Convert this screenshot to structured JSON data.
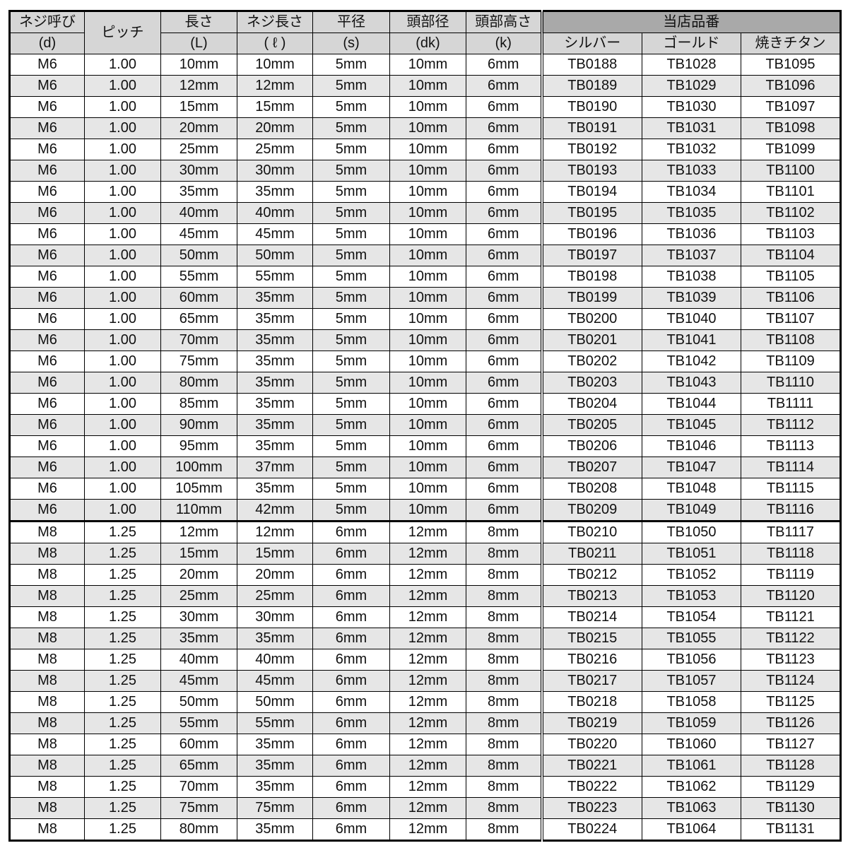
{
  "header": {
    "d": [
      "ネジ呼び",
      "(d)"
    ],
    "pitch": "ピッチ",
    "L": [
      "長さ",
      "(L)"
    ],
    "l": [
      "ネジ長さ",
      "( ℓ )"
    ],
    "s": [
      "平径",
      "(s)"
    ],
    "dk": [
      "頭部径",
      "(dk)"
    ],
    "k": [
      "頭部高さ",
      "(k)"
    ],
    "group": "当店品番",
    "silver": "シルバー",
    "gold": "ゴールド",
    "ti": "焼きチタン"
  },
  "rows": [
    [
      "M6",
      "1.00",
      "10mm",
      "10mm",
      "5mm",
      "10mm",
      "6mm",
      "TB0188",
      "TB1028",
      "TB1095"
    ],
    [
      "M6",
      "1.00",
      "12mm",
      "12mm",
      "5mm",
      "10mm",
      "6mm",
      "TB0189",
      "TB1029",
      "TB1096"
    ],
    [
      "M6",
      "1.00",
      "15mm",
      "15mm",
      "5mm",
      "10mm",
      "6mm",
      "TB0190",
      "TB1030",
      "TB1097"
    ],
    [
      "M6",
      "1.00",
      "20mm",
      "20mm",
      "5mm",
      "10mm",
      "6mm",
      "TB0191",
      "TB1031",
      "TB1098"
    ],
    [
      "M6",
      "1.00",
      "25mm",
      "25mm",
      "5mm",
      "10mm",
      "6mm",
      "TB0192",
      "TB1032",
      "TB1099"
    ],
    [
      "M6",
      "1.00",
      "30mm",
      "30mm",
      "5mm",
      "10mm",
      "6mm",
      "TB0193",
      "TB1033",
      "TB1100"
    ],
    [
      "M6",
      "1.00",
      "35mm",
      "35mm",
      "5mm",
      "10mm",
      "6mm",
      "TB0194",
      "TB1034",
      "TB1101"
    ],
    [
      "M6",
      "1.00",
      "40mm",
      "40mm",
      "5mm",
      "10mm",
      "6mm",
      "TB0195",
      "TB1035",
      "TB1102"
    ],
    [
      "M6",
      "1.00",
      "45mm",
      "45mm",
      "5mm",
      "10mm",
      "6mm",
      "TB0196",
      "TB1036",
      "TB1103"
    ],
    [
      "M6",
      "1.00",
      "50mm",
      "50mm",
      "5mm",
      "10mm",
      "6mm",
      "TB0197",
      "TB1037",
      "TB1104"
    ],
    [
      "M6",
      "1.00",
      "55mm",
      "55mm",
      "5mm",
      "10mm",
      "6mm",
      "TB0198",
      "TB1038",
      "TB1105"
    ],
    [
      "M6",
      "1.00",
      "60mm",
      "35mm",
      "5mm",
      "10mm",
      "6mm",
      "TB0199",
      "TB1039",
      "TB1106"
    ],
    [
      "M6",
      "1.00",
      "65mm",
      "35mm",
      "5mm",
      "10mm",
      "6mm",
      "TB0200",
      "TB1040",
      "TB1107"
    ],
    [
      "M6",
      "1.00",
      "70mm",
      "35mm",
      "5mm",
      "10mm",
      "6mm",
      "TB0201",
      "TB1041",
      "TB1108"
    ],
    [
      "M6",
      "1.00",
      "75mm",
      "35mm",
      "5mm",
      "10mm",
      "6mm",
      "TB0202",
      "TB1042",
      "TB1109"
    ],
    [
      "M6",
      "1.00",
      "80mm",
      "35mm",
      "5mm",
      "10mm",
      "6mm",
      "TB0203",
      "TB1043",
      "TB1110"
    ],
    [
      "M6",
      "1.00",
      "85mm",
      "35mm",
      "5mm",
      "10mm",
      "6mm",
      "TB0204",
      "TB1044",
      "TB1111"
    ],
    [
      "M6",
      "1.00",
      "90mm",
      "35mm",
      "5mm",
      "10mm",
      "6mm",
      "TB0205",
      "TB1045",
      "TB1112"
    ],
    [
      "M6",
      "1.00",
      "95mm",
      "35mm",
      "5mm",
      "10mm",
      "6mm",
      "TB0206",
      "TB1046",
      "TB1113"
    ],
    [
      "M6",
      "1.00",
      "100mm",
      "37mm",
      "5mm",
      "10mm",
      "6mm",
      "TB0207",
      "TB1047",
      "TB1114"
    ],
    [
      "M6",
      "1.00",
      "105mm",
      "35mm",
      "5mm",
      "10mm",
      "6mm",
      "TB0208",
      "TB1048",
      "TB1115"
    ],
    [
      "M6",
      "1.00",
      "110mm",
      "42mm",
      "5mm",
      "10mm",
      "6mm",
      "TB0209",
      "TB1049",
      "TB1116"
    ],
    [
      "M8",
      "1.25",
      "12mm",
      "12mm",
      "6mm",
      "12mm",
      "8mm",
      "TB0210",
      "TB1050",
      "TB1117"
    ],
    [
      "M8",
      "1.25",
      "15mm",
      "15mm",
      "6mm",
      "12mm",
      "8mm",
      "TB0211",
      "TB1051",
      "TB1118"
    ],
    [
      "M8",
      "1.25",
      "20mm",
      "20mm",
      "6mm",
      "12mm",
      "8mm",
      "TB0212",
      "TB1052",
      "TB1119"
    ],
    [
      "M8",
      "1.25",
      "25mm",
      "25mm",
      "6mm",
      "12mm",
      "8mm",
      "TB0213",
      "TB1053",
      "TB1120"
    ],
    [
      "M8",
      "1.25",
      "30mm",
      "30mm",
      "6mm",
      "12mm",
      "8mm",
      "TB0214",
      "TB1054",
      "TB1121"
    ],
    [
      "M8",
      "1.25",
      "35mm",
      "35mm",
      "6mm",
      "12mm",
      "8mm",
      "TB0215",
      "TB1055",
      "TB1122"
    ],
    [
      "M8",
      "1.25",
      "40mm",
      "40mm",
      "6mm",
      "12mm",
      "8mm",
      "TB0216",
      "TB1056",
      "TB1123"
    ],
    [
      "M8",
      "1.25",
      "45mm",
      "45mm",
      "6mm",
      "12mm",
      "8mm",
      "TB0217",
      "TB1057",
      "TB1124"
    ],
    [
      "M8",
      "1.25",
      "50mm",
      "50mm",
      "6mm",
      "12mm",
      "8mm",
      "TB0218",
      "TB1058",
      "TB1125"
    ],
    [
      "M8",
      "1.25",
      "55mm",
      "55mm",
      "6mm",
      "12mm",
      "8mm",
      "TB0219",
      "TB1059",
      "TB1126"
    ],
    [
      "M8",
      "1.25",
      "60mm",
      "35mm",
      "6mm",
      "12mm",
      "8mm",
      "TB0220",
      "TB1060",
      "TB1127"
    ],
    [
      "M8",
      "1.25",
      "65mm",
      "35mm",
      "6mm",
      "12mm",
      "8mm",
      "TB0221",
      "TB1061",
      "TB1128"
    ],
    [
      "M8",
      "1.25",
      "70mm",
      "35mm",
      "6mm",
      "12mm",
      "8mm",
      "TB0222",
      "TB1062",
      "TB1129"
    ],
    [
      "M8",
      "1.25",
      "75mm",
      "75mm",
      "6mm",
      "12mm",
      "8mm",
      "TB0223",
      "TB1063",
      "TB1130"
    ],
    [
      "M8",
      "1.25",
      "80mm",
      "35mm",
      "6mm",
      "12mm",
      "8mm",
      "TB0224",
      "TB1064",
      "TB1131"
    ]
  ]
}
